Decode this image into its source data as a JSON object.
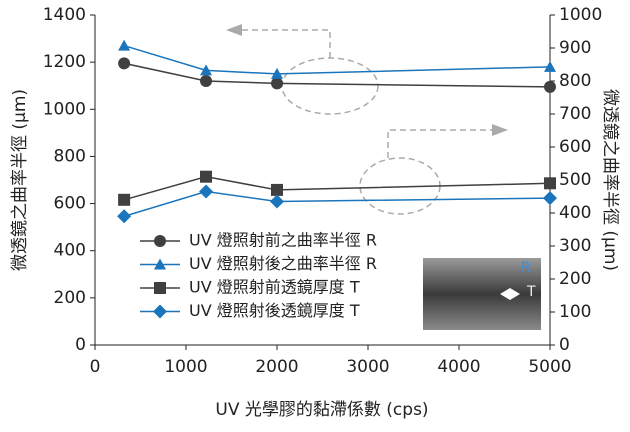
{
  "chart_data": {
    "type": "line",
    "x_label": "UV 光學膠的黏滯係數 (cps)",
    "y_label": "微透鏡之曲率半徑 (μm)",
    "y2_label": "微透鏡之曲率半徑 (μm)",
    "x": [
      320,
      1220,
      2000,
      5000
    ],
    "xlim": [
      0,
      5000
    ],
    "xticks": [
      0,
      1000,
      2000,
      3000,
      4000,
      5000
    ],
    "ylim": [
      0,
      1400
    ],
    "yticks": [
      0,
      200,
      400,
      600,
      800,
      1000,
      1200,
      1400
    ],
    "y2lim": [
      0,
      1000
    ],
    "y2ticks": [
      0,
      100,
      200,
      300,
      400,
      500,
      600,
      700,
      800,
      900,
      1000
    ],
    "grid": false,
    "series": [
      {
        "name": "UV 燈照射前之曲率半徑 R",
        "color": "#404040",
        "marker": "circle",
        "values": [
          1195,
          1120,
          1110,
          1095
        ]
      },
      {
        "name": "UV 燈照射後之曲率半徑 R",
        "color": "#1a75bc",
        "marker": "triangle",
        "values": [
          1270,
          1165,
          1150,
          1180
        ]
      },
      {
        "name": "UV 燈照射前透鏡厚度 T",
        "color": "#404040",
        "marker": "square",
        "axis": "y2",
        "values": [
          440,
          510,
          470,
          490
        ]
      },
      {
        "name": "UV 燈照射後透鏡厚度 T",
        "color": "#1a75bc",
        "marker": "diamond",
        "axis": "y2",
        "values": [
          390,
          465,
          435,
          445
        ]
      }
    ],
    "inset_labels": [
      "R",
      "T"
    ]
  }
}
